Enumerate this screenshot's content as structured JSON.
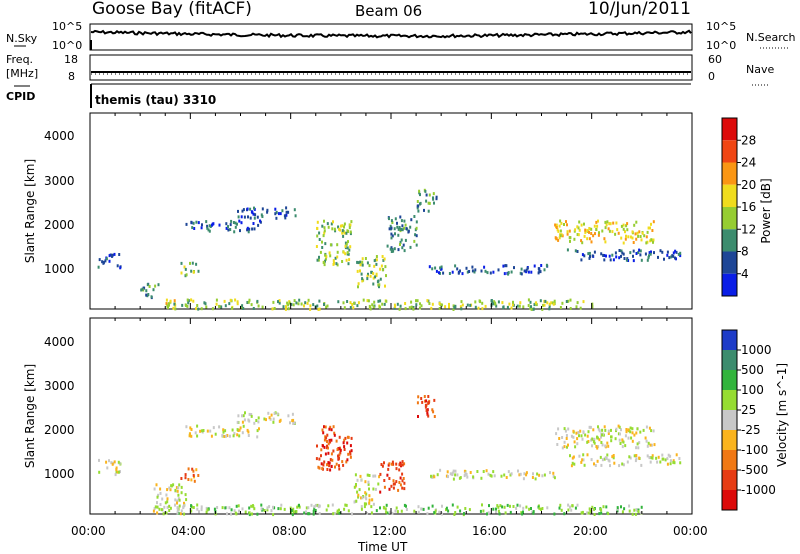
{
  "header": {
    "station": "Goose Bay (fitACF)",
    "beam": "Beam 06",
    "date": "10/Jun/2011"
  },
  "noise_panel": {
    "left_label": "N.Sky",
    "right_label": "N.Search",
    "left_ticks": [
      "10^5",
      "10^0"
    ],
    "right_ticks": [
      "10^5",
      "10^0"
    ]
  },
  "freq_panel": {
    "left_label_1": "Freq.",
    "left_label_2": "[MHz]",
    "left_ticks": [
      "18",
      "8"
    ],
    "right_label": "Nave",
    "right_ticks": [
      "60",
      "0"
    ]
  },
  "cpid_panel": {
    "label": "CPID",
    "program": "themis (tau) 3310"
  },
  "chart_data": [
    {
      "type": "heatmap",
      "title": "",
      "ylabel": "Slant Range [km]",
      "xlabel": "",
      "ylim": [
        180,
        4600
      ],
      "yticks": [
        "1000",
        "2000",
        "3000",
        "4000"
      ],
      "colorbar_label": "Power [dB]",
      "colorbar_ticks": [
        "4",
        "8",
        "12",
        "16",
        "20",
        "24",
        "28"
      ],
      "colorbar_colors": [
        "#0a1ee6",
        "#1e4696",
        "#3c8c6e",
        "#96cd32",
        "#f0dc1e",
        "#fa9614",
        "#f04614",
        "#dc0a0a"
      ],
      "x_range_hours": [
        0,
        24
      ],
      "regions": [
        {
          "t0": 0.3,
          "t1": 1.2,
          "r0": 1100,
          "r1": 1450,
          "level": 1
        },
        {
          "t0": 2.0,
          "t1": 2.8,
          "r0": 450,
          "r1": 800,
          "level": 2
        },
        {
          "t0": 2.8,
          "t1": 3.5,
          "r0": 200,
          "r1": 420,
          "level": 4
        },
        {
          "t0": 3.6,
          "t1": 4.3,
          "r0": 950,
          "r1": 1250,
          "level": 3
        },
        {
          "t0": 3.8,
          "t1": 6.8,
          "r0": 1950,
          "r1": 2200,
          "level": 1
        },
        {
          "t0": 5.8,
          "t1": 8.3,
          "r0": 2250,
          "r1": 2500,
          "level": 1
        },
        {
          "t0": 9.0,
          "t1": 10.4,
          "r0": 1200,
          "r1": 2200,
          "level": 3
        },
        {
          "t0": 10.6,
          "t1": 11.8,
          "r0": 700,
          "r1": 1400,
          "level": 3
        },
        {
          "t0": 11.8,
          "t1": 13.0,
          "r0": 1500,
          "r1": 2300,
          "level": 2
        },
        {
          "t0": 13.0,
          "t1": 13.8,
          "r0": 2400,
          "r1": 2900,
          "level": 2
        },
        {
          "t0": 13.5,
          "t1": 18.5,
          "r0": 1000,
          "r1": 1200,
          "level": 1
        },
        {
          "t0": 18.5,
          "t1": 22.5,
          "r0": 1700,
          "r1": 2200,
          "level": 4
        },
        {
          "t0": 19.0,
          "t1": 23.5,
          "r0": 1300,
          "r1": 1550,
          "level": 1
        },
        {
          "t0": 3.0,
          "t1": 20.0,
          "r0": 200,
          "r1": 420,
          "level": 3
        }
      ]
    },
    {
      "type": "heatmap",
      "title": "",
      "ylabel": "Slant Range [km]",
      "xlabel": "Time UT",
      "ylim": [
        180,
        4600
      ],
      "yticks": [
        "1000",
        "2000",
        "3000",
        "4000"
      ],
      "xticks": [
        "00:00",
        "04:00",
        "08:00",
        "12:00",
        "16:00",
        "20:00",
        "00:00"
      ],
      "colorbar_label": "Velocity [m s^-1]",
      "colorbar_ticks": [
        "1000",
        "500",
        "100",
        "25",
        "-25",
        "-100",
        "-500",
        "-1000"
      ],
      "colorbar_colors": [
        "#1e3cc8",
        "#3c8c6e",
        "#32b43c",
        "#96dc32",
        "#c8c8c8",
        "#fab41e",
        "#f07814",
        "#e63c14",
        "#dc0a0a"
      ],
      "x_range_hours": [
        0,
        24
      ],
      "regions": [
        {
          "t0": 0.3,
          "t1": 1.2,
          "r0": 1100,
          "r1": 1450,
          "level": 4
        },
        {
          "t0": 2.5,
          "t1": 3.8,
          "r0": 200,
          "r1": 900,
          "level": 4
        },
        {
          "t0": 3.6,
          "t1": 4.3,
          "r0": 950,
          "r1": 1250,
          "level": 6
        },
        {
          "t0": 3.8,
          "t1": 6.8,
          "r0": 1950,
          "r1": 2200,
          "level": 4
        },
        {
          "t0": 5.8,
          "t1": 8.3,
          "r0": 2250,
          "r1": 2500,
          "level": 4
        },
        {
          "t0": 9.0,
          "t1": 10.4,
          "r0": 1200,
          "r1": 2200,
          "level": 7
        },
        {
          "t0": 10.5,
          "t1": 11.5,
          "r0": 400,
          "r1": 1100,
          "level": 4
        },
        {
          "t0": 11.5,
          "t1": 12.5,
          "r0": 700,
          "r1": 1400,
          "level": 7
        },
        {
          "t0": 13.0,
          "t1": 13.8,
          "r0": 2400,
          "r1": 2900,
          "level": 7
        },
        {
          "t0": 13.5,
          "t1": 18.5,
          "r0": 1000,
          "r1": 1200,
          "level": 4
        },
        {
          "t0": 18.5,
          "t1": 22.5,
          "r0": 1700,
          "r1": 2200,
          "level": 4
        },
        {
          "t0": 19.0,
          "t1": 23.5,
          "r0": 1300,
          "r1": 1550,
          "level": 4
        },
        {
          "t0": 3.0,
          "t1": 22.0,
          "r0": 200,
          "r1": 420,
          "level": 3
        }
      ]
    }
  ]
}
